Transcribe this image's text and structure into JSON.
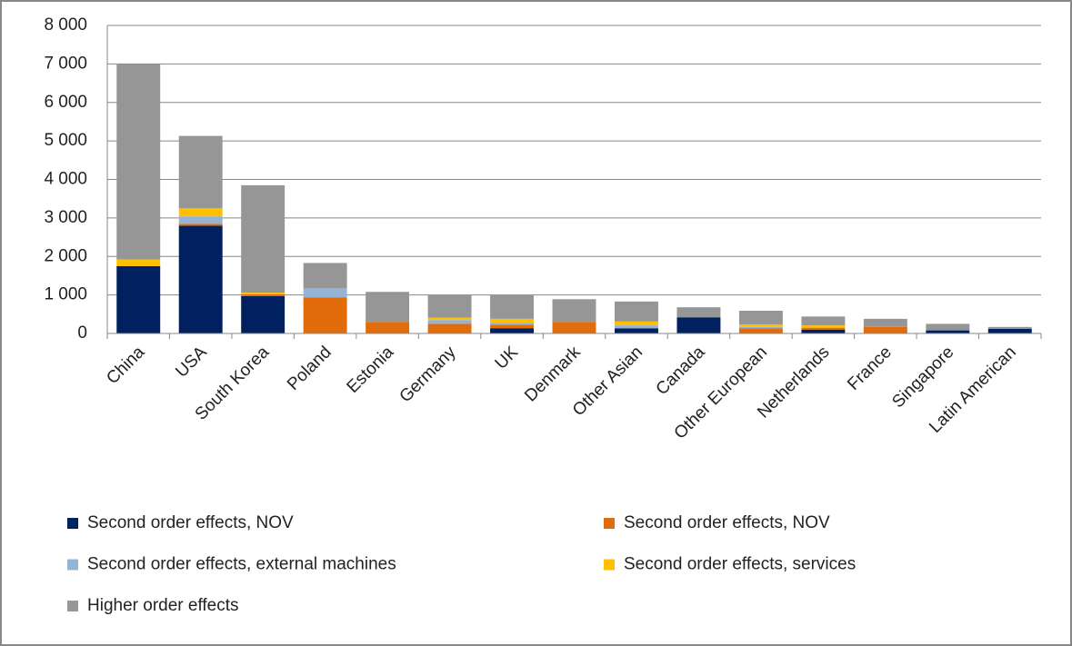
{
  "chart_data": {
    "type": "bar",
    "stacked": true,
    "categories": [
      "China",
      "USA",
      "South Korea",
      "Poland",
      "Estonia",
      "Germany",
      "UK",
      "Denmark",
      "Other Asian",
      "Canada",
      "Other European",
      "Netherlands",
      "France",
      "Singapore",
      "Latin American"
    ],
    "series": [
      {
        "name": "Second order effects, NOV",
        "color": "#002060",
        "values": [
          1750,
          2800,
          970,
          0,
          0,
          0,
          130,
          0,
          130,
          420,
          0,
          100,
          0,
          80,
          120
        ]
      },
      {
        "name": "Second order effects, NOV",
        "color": "#e36c0a",
        "values": [
          0,
          50,
          50,
          940,
          300,
          250,
          100,
          300,
          0,
          0,
          130,
          50,
          170,
          0,
          0
        ]
      },
      {
        "name": "Second order effects, external machines",
        "color": "#95b3d7",
        "values": [
          0,
          190,
          0,
          240,
          0,
          100,
          50,
          0,
          80,
          0,
          40,
          0,
          0,
          0,
          0
        ]
      },
      {
        "name": "Second order effects, services",
        "color": "#ffc000",
        "values": [
          170,
          210,
          40,
          0,
          0,
          60,
          100,
          0,
          100,
          0,
          60,
          60,
          0,
          0,
          0
        ]
      },
      {
        "name": "Higher order effects",
        "color": "#969696",
        "values": [
          5080,
          1880,
          2790,
          650,
          780,
          590,
          620,
          590,
          520,
          260,
          360,
          230,
          210,
          170,
          50
        ]
      }
    ],
    "ylim": [
      0,
      8000
    ],
    "yticks": [
      0,
      {
        "value": 1000,
        "label": "1 000"
      },
      {
        "value": 2000,
        "label": "2 000"
      },
      {
        "value": 3000,
        "label": "3 000"
      },
      {
        "value": 4000,
        "label": "4 000"
      },
      {
        "value": 5000,
        "label": "5 000"
      },
      {
        "value": 6000,
        "label": "6 000"
      },
      {
        "value": 7000,
        "label": "7 000"
      },
      {
        "value": 8000,
        "label": "8 000"
      }
    ],
    "grid": true
  }
}
